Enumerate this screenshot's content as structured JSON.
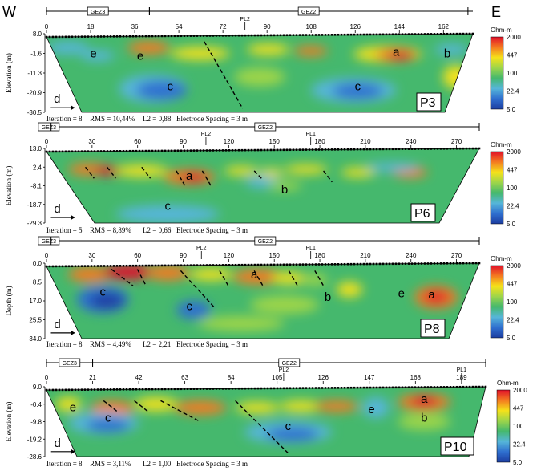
{
  "corner_labels": {
    "west": "W",
    "east": "E"
  },
  "legend": {
    "unit": "Ohm-m",
    "ticks": [
      "2000",
      "447",
      "100",
      "22.4",
      "5.0"
    ],
    "colors": [
      "#e0102a",
      "#f47a20",
      "#f5e21a",
      "#9dd54a",
      "#45b86d",
      "#56b6d9",
      "#2f6fcf",
      "#1c3da0"
    ]
  },
  "profiles": [
    {
      "id": "P3",
      "name_label": "P3",
      "segments": [
        {
          "label": "GEZ3",
          "from": 0,
          "to": 42
        },
        {
          "label": "GEZ2",
          "from": 42,
          "to": 172
        }
      ],
      "markers": [
        {
          "label": "PL2",
          "at": 81
        }
      ],
      "x_ticks": [
        "0",
        "18",
        "36",
        "54",
        "72",
        "90",
        "108",
        "126",
        "144",
        "162"
      ],
      "x_max": 174,
      "y_axis_title": "Elevation (m)",
      "y_ticks": [
        "8.0",
        "-1.6",
        "-11.3",
        "-20.9",
        "-30.5"
      ],
      "zone_labels": [
        {
          "text": "e",
          "x": 0.11,
          "y": 0.3
        },
        {
          "text": "e",
          "x": 0.22,
          "y": 0.33
        },
        {
          "text": "a",
          "x": 0.82,
          "y": 0.28
        },
        {
          "text": "b",
          "x": 0.94,
          "y": 0.3
        },
        {
          "text": "c",
          "x": 0.29,
          "y": 0.72
        },
        {
          "text": "c",
          "x": 0.73,
          "y": 0.72
        },
        {
          "text": "d",
          "x": 0.025,
          "y": 0.88
        }
      ],
      "stats": {
        "iteration": "Iteration = 8",
        "rms": "RMS = 10,44%",
        "l2": "L2 = 0,88",
        "spacing": "Electrode Spacing = 3 m"
      }
    },
    {
      "id": "P6",
      "name_label": "P6",
      "segments": [
        {
          "label": "GEZ3",
          "from": 0,
          "to": 3
        },
        {
          "label": "GEZ2",
          "from": 3,
          "to": 285
        }
      ],
      "markers": [
        {
          "label": "PL2",
          "at": 105
        },
        {
          "label": "PL1",
          "at": 174
        }
      ],
      "x_ticks": [
        "0",
        "30",
        "60",
        "90",
        "120",
        "150",
        "180",
        "210",
        "240",
        "270"
      ],
      "x_max": 285,
      "y_axis_title": "Elevation (m)",
      "y_ticks": [
        "13.0",
        "2.4",
        "-8.1",
        "-18.7",
        "-29.3"
      ],
      "zone_labels": [
        {
          "text": "a",
          "x": 0.33,
          "y": 0.42
        },
        {
          "text": "b",
          "x": 0.55,
          "y": 0.6
        },
        {
          "text": "c",
          "x": 0.28,
          "y": 0.82
        },
        {
          "text": "d",
          "x": 0.025,
          "y": 0.86
        }
      ],
      "stats": {
        "iteration": "Iteration = 5",
        "rms": "RMS = 8,89%",
        "l2": "L2 = 0,66",
        "spacing": "Electrode Spacing = 3 m"
      }
    },
    {
      "id": "P8",
      "name_label": "P8",
      "segments": [
        {
          "label": "GEZ3",
          "from": 0,
          "to": 3
        },
        {
          "label": "GEZ2",
          "from": 3,
          "to": 285
        }
      ],
      "markers": [
        {
          "label": "PL2",
          "at": 102
        },
        {
          "label": "PL1",
          "at": 174
        }
      ],
      "x_ticks": [
        "0",
        "30",
        "60",
        "90",
        "120",
        "150",
        "180",
        "210",
        "240",
        "270"
      ],
      "x_max": 285,
      "y_axis_title": "Depth (m)",
      "y_ticks": [
        "0.0",
        "8.5",
        "17.0",
        "25.5",
        "34.0"
      ],
      "zone_labels": [
        {
          "text": "a",
          "x": 0.48,
          "y": 0.2
        },
        {
          "text": "c",
          "x": 0.13,
          "y": 0.43
        },
        {
          "text": "c",
          "x": 0.33,
          "y": 0.62
        },
        {
          "text": "b",
          "x": 0.65,
          "y": 0.5
        },
        {
          "text": "e",
          "x": 0.82,
          "y": 0.45
        },
        {
          "text": "a",
          "x": 0.89,
          "y": 0.47
        },
        {
          "text": "d",
          "x": 0.025,
          "y": 0.86
        }
      ],
      "stats": {
        "iteration": "Iteration = 8",
        "rms": "RMS = 4,49%",
        "l2": "L2 = 2,21",
        "spacing": "Electrode Spacing = 3 m"
      }
    },
    {
      "id": "P10",
      "name_label": "P10",
      "segments": [
        {
          "label": "GEZ3",
          "from": 0,
          "to": 21
        },
        {
          "label": "GEZ2",
          "from": 21,
          "to": 200
        }
      ],
      "markers": [
        {
          "label": "PL2",
          "at": 108
        },
        {
          "label": "PL1",
          "at": 189
        }
      ],
      "x_ticks": [
        "0",
        "21",
        "42",
        "63",
        "84",
        "105",
        "126",
        "147",
        "168",
        "189"
      ],
      "x_max": 200,
      "y_axis_title": "Elevation (m)",
      "y_ticks": [
        "9.0",
        "-0.4",
        "-9.8",
        "-19.2",
        "-28.6"
      ],
      "zone_labels": [
        {
          "text": "e",
          "x": 0.06,
          "y": 0.35
        },
        {
          "text": "c",
          "x": 0.14,
          "y": 0.5
        },
        {
          "text": "c",
          "x": 0.55,
          "y": 0.62
        },
        {
          "text": "e",
          "x": 0.74,
          "y": 0.38
        },
        {
          "text": "a",
          "x": 0.86,
          "y": 0.23
        },
        {
          "text": "b",
          "x": 0.86,
          "y": 0.5
        },
        {
          "text": "d",
          "x": 0.025,
          "y": 0.86
        }
      ],
      "stats": {
        "iteration": "Iteration = 8",
        "rms": "RMS = 3,11%",
        "l2": "L2 = 1,00",
        "spacing": "Electrode Spacing = 3 m"
      }
    }
  ]
}
